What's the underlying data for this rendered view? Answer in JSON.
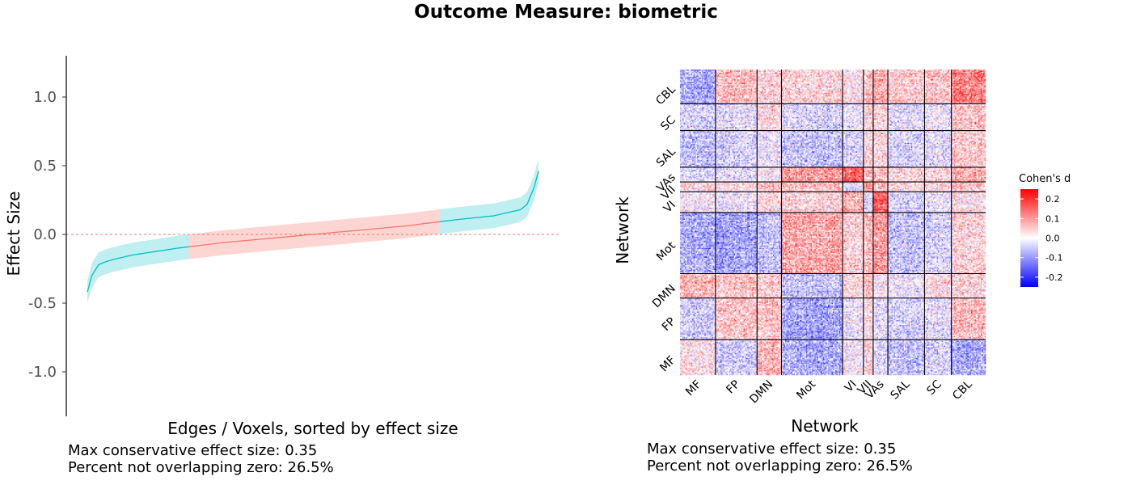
{
  "title": "Outcome Measure: biometric",
  "chart_data": [
    {
      "type": "line",
      "xlabel": "Edges / Voxels, sorted by effect size",
      "ylabel": "Effect Size",
      "ylim": [
        -1.3,
        1.3
      ],
      "y_ticks": [
        1.0,
        0.5,
        0.0,
        -0.5,
        -1.0
      ],
      "y_tick_labels": [
        "1.0",
        "0.5",
        "0.0",
        "-0.5",
        "-1.0"
      ],
      "reference_line": 0.0,
      "series": [
        {
          "x": [
            0,
            0.01,
            0.025,
            0.04,
            0.06,
            0.08,
            0.1,
            0.13,
            0.16,
            0.2,
            0.25,
            0.3,
            0.35,
            0.4,
            0.45,
            0.5,
            0.55,
            0.6,
            0.65,
            0.7,
            0.75,
            0.8,
            0.84,
            0.87,
            0.9,
            0.92,
            0.94,
            0.96,
            0.975,
            0.99,
            1.0
          ],
          "y": [
            -0.42,
            -0.3,
            -0.22,
            -0.2,
            -0.18,
            -0.165,
            -0.15,
            -0.135,
            -0.12,
            -0.1,
            -0.08,
            -0.06,
            -0.045,
            -0.03,
            -0.015,
            0.0,
            0.015,
            0.03,
            0.045,
            0.06,
            0.08,
            0.1,
            0.115,
            0.125,
            0.135,
            0.15,
            0.165,
            0.18,
            0.22,
            0.34,
            0.46
          ],
          "lower": [
            -0.5,
            -0.39,
            -0.31,
            -0.29,
            -0.27,
            -0.255,
            -0.24,
            -0.225,
            -0.21,
            -0.19,
            -0.17,
            -0.15,
            -0.135,
            -0.12,
            -0.105,
            -0.09,
            -0.075,
            -0.06,
            -0.045,
            -0.03,
            -0.01,
            0.01,
            0.025,
            0.035,
            0.045,
            0.06,
            0.075,
            0.09,
            0.13,
            0.25,
            0.37
          ],
          "upper": [
            -0.34,
            -0.21,
            -0.13,
            -0.11,
            -0.09,
            -0.075,
            -0.06,
            -0.045,
            -0.03,
            -0.01,
            0.01,
            0.03,
            0.045,
            0.06,
            0.075,
            0.09,
            0.105,
            0.12,
            0.135,
            0.15,
            0.17,
            0.19,
            0.205,
            0.215,
            0.225,
            0.24,
            0.255,
            0.27,
            0.31,
            0.43,
            0.55
          ]
        }
      ],
      "colors": {
        "overlapping_zero": "#f8766d",
        "not_overlapping_zero": "#00bfc4"
      },
      "stats": [
        "Max conservative effect size: 0.35",
        "Percent not overlapping zero: 26.5%"
      ]
    },
    {
      "type": "heatmap",
      "xlabel": "Network",
      "ylabel": "Network",
      "networks_bottom_to_top": [
        "MF",
        "FP",
        "DMN",
        "Mot",
        "VI",
        "VII",
        "VAs",
        "SAL",
        "SC",
        "CBL"
      ],
      "network_sizes": [
        29,
        34,
        20,
        50,
        17,
        8,
        12,
        30,
        22,
        28
      ],
      "colorbar": {
        "title": "Cohen's d",
        "range": [
          -0.25,
          0.25
        ],
        "ticks": [
          0.2,
          0.1,
          0.0,
          -0.1,
          -0.2
        ],
        "tick_labels": [
          "0.2",
          "0.1",
          "0.0",
          "-0.1",
          "-0.2"
        ]
      },
      "colors": {
        "low": "#0000ff",
        "mid": "#ffffff",
        "high": "#ff0000"
      },
      "block_means": [
        [
          0.02,
          -0.05,
          0.06,
          -0.08,
          0.0,
          0.03,
          -0.04,
          -0.06,
          -0.05,
          -0.09
        ],
        [
          -0.05,
          0.05,
          0.05,
          -0.09,
          -0.02,
          0.02,
          -0.03,
          -0.04,
          -0.03,
          0.06
        ],
        [
          0.06,
          0.05,
          0.04,
          -0.06,
          0.03,
          0.05,
          0.0,
          -0.02,
          0.02,
          0.03
        ],
        [
          -0.08,
          -0.09,
          -0.06,
          0.09,
          0.04,
          0.06,
          0.1,
          -0.05,
          -0.04,
          0.04
        ],
        [
          0.0,
          -0.02,
          0.03,
          0.04,
          0.08,
          -0.02,
          0.15,
          -0.03,
          -0.02,
          0.02
        ],
        [
          0.03,
          0.02,
          0.05,
          0.06,
          -0.02,
          0.1,
          0.05,
          0.03,
          0.02,
          0.05
        ],
        [
          -0.04,
          -0.03,
          0.0,
          0.1,
          0.15,
          0.05,
          0.05,
          0.03,
          0.02,
          0.08
        ],
        [
          -0.06,
          -0.04,
          -0.02,
          -0.05,
          -0.03,
          0.03,
          0.03,
          -0.03,
          -0.03,
          0.05
        ],
        [
          -0.05,
          -0.03,
          0.02,
          -0.04,
          -0.02,
          0.02,
          0.02,
          -0.03,
          -0.02,
          0.05
        ],
        [
          -0.09,
          0.06,
          0.03,
          0.04,
          0.02,
          0.05,
          0.08,
          0.05,
          0.05,
          0.12
        ]
      ],
      "stats": [
        "Max conservative effect size: 0.35",
        "Percent not overlapping zero: 26.5%"
      ]
    }
  ]
}
